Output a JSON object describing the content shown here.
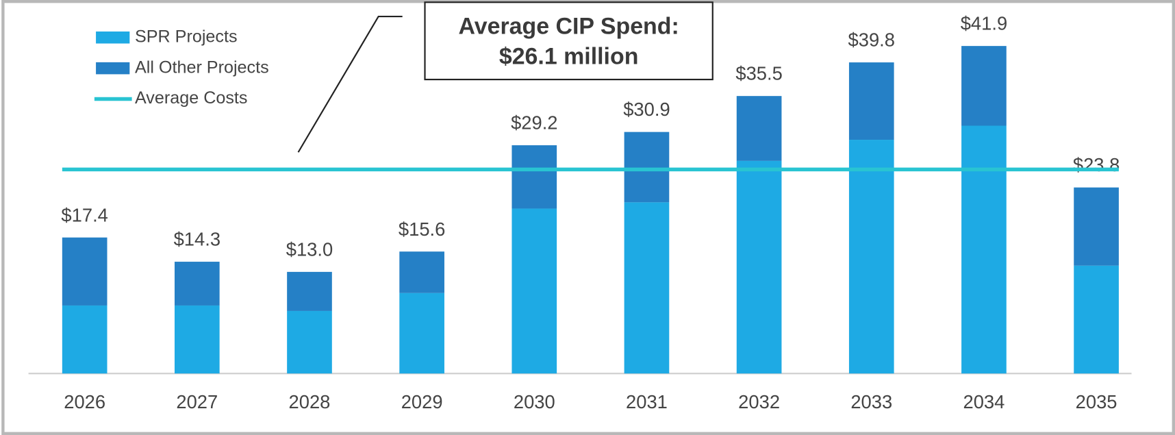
{
  "chart_data": {
    "type": "stacked_bar",
    "categories": [
      "2026",
      "2027",
      "2028",
      "2029",
      "2030",
      "2031",
      "2032",
      "2033",
      "2034",
      "2035"
    ],
    "series": [
      {
        "name": "SPR Projects",
        "color": "#1eaae4",
        "values": [
          8.7,
          8.7,
          8.0,
          10.3,
          21.1,
          21.9,
          27.2,
          29.9,
          31.7,
          13.8
        ]
      },
      {
        "name": "All Other Projects",
        "color": "#2580c6",
        "values": [
          8.7,
          5.6,
          5.0,
          5.3,
          8.1,
          9.0,
          8.3,
          9.9,
          10.2,
          10.0
        ]
      },
      {
        "name": "Average Costs",
        "color": "#29c4d2",
        "type": "line",
        "values": [
          26.1,
          26.1,
          26.1,
          26.1,
          26.1,
          26.1,
          26.1,
          26.1,
          26.1,
          26.1
        ]
      }
    ],
    "totals": [
      17.4,
      14.3,
      13.0,
      15.6,
      29.2,
      30.9,
      35.5,
      39.8,
      41.9,
      23.8
    ],
    "total_labels": [
      "$17.4",
      "$14.3",
      "$13.0",
      "$15.6",
      "$29.2",
      "$30.9",
      "$35.5",
      "$39.8",
      "$41.9",
      "$23.8"
    ],
    "annotation": [
      "Average CIP Spend:",
      "$26.1 million"
    ],
    "ylim": [
      0,
      45
    ],
    "legend": "top-left"
  }
}
